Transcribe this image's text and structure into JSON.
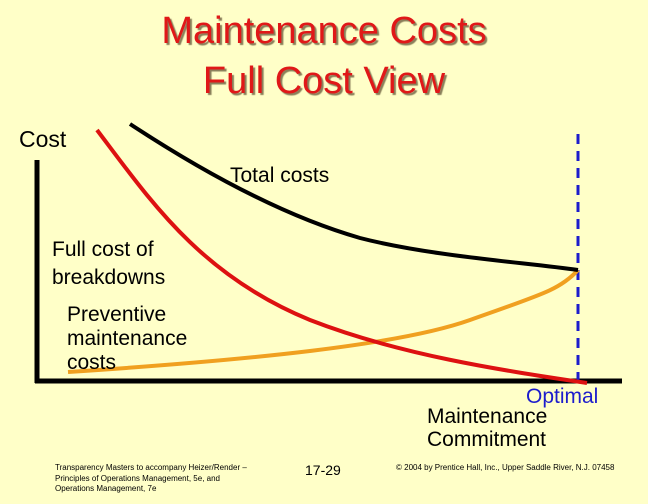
{
  "title": {
    "line1": "Maintenance Costs",
    "line2": "Full Cost View"
  },
  "labels": {
    "y_axis": "Cost",
    "total_costs": "Total costs",
    "breakdowns": "Full cost of breakdowns",
    "preventive": "Preventive maintenance costs",
    "optimal_line1": "Optimal",
    "optimal_line2": "Maintenance",
    "optimal_line3": "Commitment"
  },
  "footer": {
    "left": "Transparency Masters to accompany Heizer/Render – Principles of Operations Management, 5e, and Operations Management, 7e",
    "page": "17-29",
    "right": "© 2004 by Prentice Hall, Inc., Upper Saddle River, N.J. 07458"
  },
  "colors": {
    "background": "#ffffc8",
    "title": "#e01818",
    "total_costs": "#000000",
    "breakdowns": "#dd1111",
    "preventive": "#f0a020",
    "optimal_marker": "#1c1ccc"
  }
}
